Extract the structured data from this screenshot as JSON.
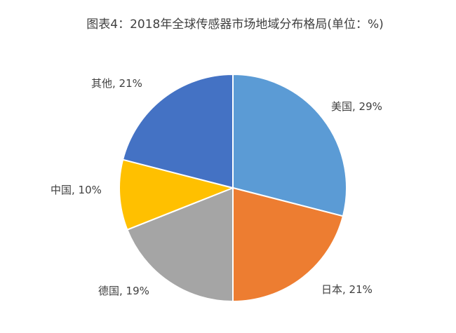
{
  "chart_data": {
    "type": "pie",
    "title": "图表4：2018年全球传感器市场地域分布格局(单位：%)",
    "slices": [
      {
        "label": "美国",
        "value": 29,
        "label_text": "美国, 29%",
        "color": "#5b9bd5"
      },
      {
        "label": "日本",
        "value": 21,
        "label_text": "日本, 21%",
        "color": "#ed7d31"
      },
      {
        "label": "德国",
        "value": 19,
        "label_text": "德国, 19%",
        "color": "#a5a5a5"
      },
      {
        "label": "中国",
        "value": 10,
        "label_text": "中国, 10%",
        "color": "#ffc000"
      },
      {
        "label": "其他",
        "value": 21,
        "label_text": "其他, 21%",
        "color": "#4472c4"
      }
    ],
    "legend": "none"
  }
}
